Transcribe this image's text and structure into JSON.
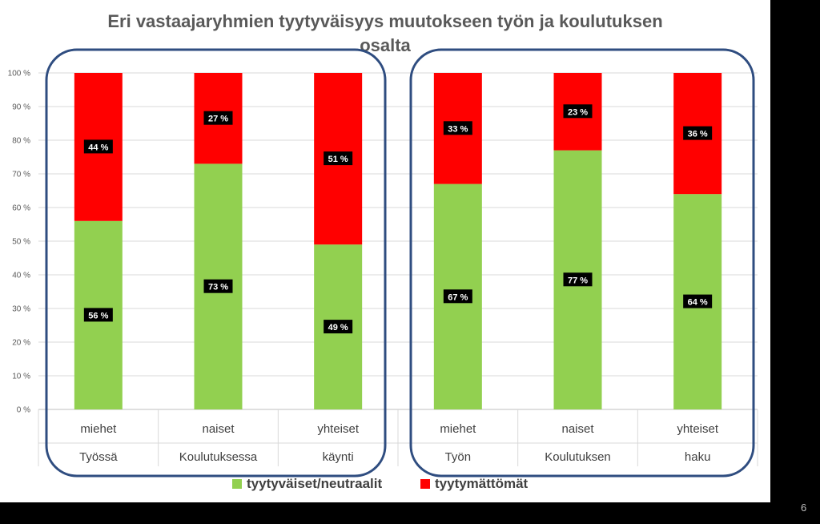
{
  "slide": {
    "page_number": "6"
  },
  "chart_data": {
    "type": "bar",
    "stacked": true,
    "percent": true,
    "title": "Eri vastaajaryhmien tyytyväisyys muutokseen työn ja koulutuksen osalta",
    "title_lines": [
      "Eri vastaajaryhmien tyytyväisyys muutokseen työn ja koulutuksen",
      "osalta"
    ],
    "ylim": [
      0,
      100
    ],
    "yticks": [
      "0 %",
      "10 %",
      "20 %",
      "30 %",
      "40 %",
      "50 %",
      "60 %",
      "70 %",
      "80 %",
      "90 %",
      "100 %"
    ],
    "categories": [
      "miehet",
      "naiset",
      "yhteiset",
      "miehet",
      "naiset",
      "yhteiset"
    ],
    "groups": [
      {
        "labels": [
          "Työssä",
          "Koulutuksessa",
          "käynti"
        ]
      },
      {
        "labels": [
          "Työn",
          "Koulutuksen",
          "haku"
        ]
      }
    ],
    "series": [
      {
        "name": "tyytyväiset/neutraalit",
        "color": "#92d050",
        "values": [
          56,
          73,
          49,
          67,
          77,
          64
        ],
        "labels": [
          "56 %",
          "73 %",
          "49 %",
          "67 %",
          "77 %",
          "64 %"
        ]
      },
      {
        "name": "tyytymättömät",
        "color": "#ff0000",
        "values": [
          44,
          27,
          51,
          33,
          23,
          36
        ],
        "labels": [
          "44 %",
          "27 %",
          "51 %",
          "33 %",
          "23 %",
          "36 %"
        ]
      }
    ],
    "legend_position": "bottom",
    "grid": true
  }
}
